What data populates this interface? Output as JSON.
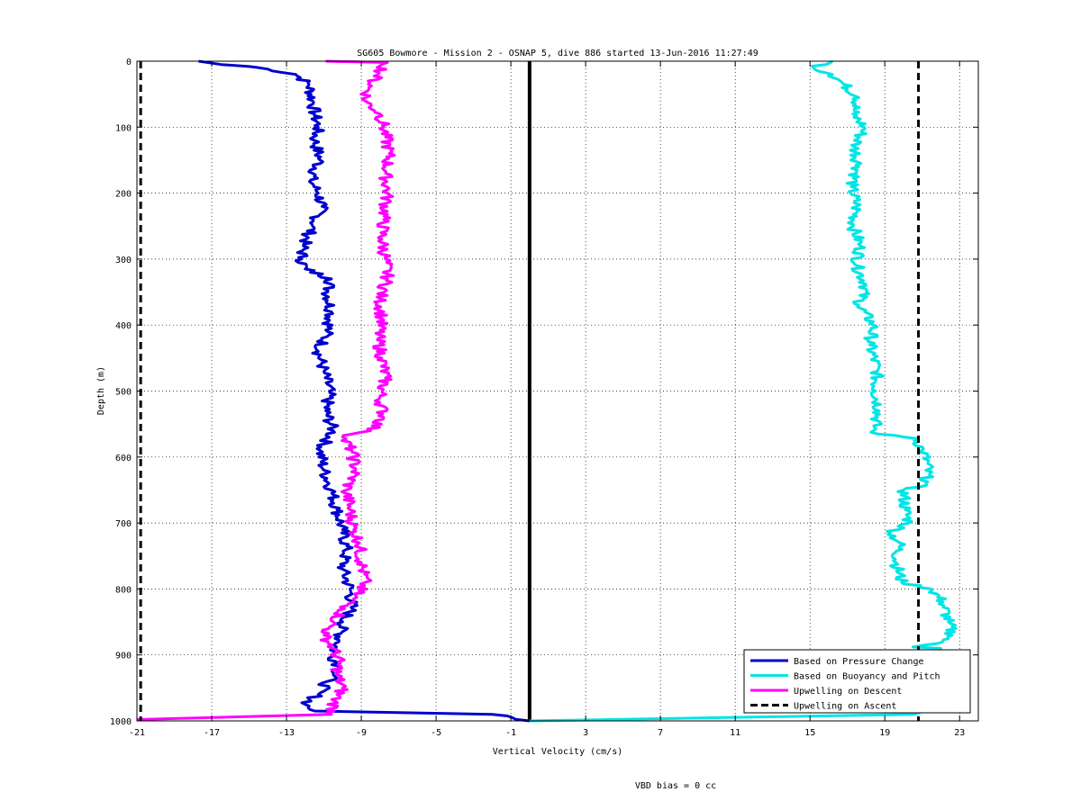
{
  "chart_data": {
    "type": "line",
    "title": "SG605 Bowmore - Mission 2 - OSNAP 5, dive 886 started 13-Jun-2016 11:27:49",
    "xlabel": "Vertical Velocity (cm/s)",
    "ylabel": "Depth (m)",
    "xlim": [
      -21,
      24
    ],
    "ylim": [
      0,
      1000
    ],
    "y_reversed": true,
    "grid": true,
    "legend_position": "bottom-right",
    "x_ticks": [
      -21,
      -17,
      -13,
      -9,
      -5,
      -1,
      3,
      7,
      11,
      15,
      19,
      23
    ],
    "y_ticks": [
      0,
      100,
      200,
      300,
      400,
      500,
      600,
      700,
      800,
      900,
      1000
    ],
    "zero_line_x": 0,
    "series": [
      {
        "name": "Based on Pressure Change",
        "color": "#0000cc",
        "style": "solid",
        "points": [
          [
            -17.7,
            0
          ],
          [
            -16.5,
            5
          ],
          [
            -15,
            8
          ],
          [
            -14,
            12
          ],
          [
            -12.5,
            20
          ],
          [
            -11.8,
            35
          ],
          [
            -11.6,
            60
          ],
          [
            -11.5,
            80
          ],
          [
            -11.3,
            100
          ],
          [
            -11.5,
            120
          ],
          [
            -11.2,
            150
          ],
          [
            -11.7,
            180
          ],
          [
            -11.3,
            200
          ],
          [
            -11.1,
            220
          ],
          [
            -11.6,
            250
          ],
          [
            -12.1,
            280
          ],
          [
            -12.2,
            300
          ],
          [
            -12,
            315
          ],
          [
            -10.6,
            330
          ],
          [
            -10.8,
            350
          ],
          [
            -10.6,
            380
          ],
          [
            -10.8,
            410
          ],
          [
            -11.3,
            440
          ],
          [
            -11.0,
            470
          ],
          [
            -10.7,
            500
          ],
          [
            -10.9,
            530
          ],
          [
            -10.5,
            560
          ],
          [
            -11.2,
            590
          ],
          [
            -11.0,
            620
          ],
          [
            -10.6,
            650
          ],
          [
            -10.3,
            680
          ],
          [
            -10.0,
            710
          ],
          [
            -9.8,
            740
          ],
          [
            -10.0,
            770
          ],
          [
            -9.6,
            800
          ],
          [
            -9.5,
            830
          ],
          [
            -10.0,
            850
          ],
          [
            -10.2,
            880
          ],
          [
            -10.6,
            900
          ],
          [
            -10.1,
            920
          ],
          [
            -10.8,
            940
          ],
          [
            -11.3,
            960
          ],
          [
            -12.0,
            975
          ],
          [
            -11.5,
            985
          ],
          [
            -2.0,
            990
          ],
          [
            0,
            1000
          ]
        ]
      },
      {
        "name": "Based on Buoyancy and Pitch",
        "color": "#00e5e5",
        "style": "solid",
        "points": [
          [
            16.2,
            0
          ],
          [
            15.2,
            10
          ],
          [
            16.2,
            20
          ],
          [
            16.8,
            35
          ],
          [
            17.6,
            55
          ],
          [
            17.3,
            80
          ],
          [
            17.9,
            100
          ],
          [
            17.4,
            130
          ],
          [
            17.6,
            160
          ],
          [
            17.2,
            190
          ],
          [
            17.5,
            220
          ],
          [
            17.3,
            250
          ],
          [
            17.7,
            280
          ],
          [
            17.5,
            310
          ],
          [
            18.0,
            340
          ],
          [
            17.6,
            370
          ],
          [
            18.4,
            400
          ],
          [
            18.2,
            430
          ],
          [
            18.6,
            470
          ],
          [
            18.5,
            500
          ],
          [
            18.7,
            530
          ],
          [
            18.4,
            560
          ],
          [
            18.6,
            565
          ],
          [
            20.7,
            572
          ],
          [
            21.0,
            590
          ],
          [
            21.3,
            610
          ],
          [
            21.2,
            640
          ],
          [
            20.0,
            650
          ],
          [
            20.1,
            680
          ],
          [
            20.3,
            700
          ],
          [
            19.3,
            715
          ],
          [
            19.8,
            730
          ],
          [
            19.6,
            760
          ],
          [
            19.9,
            790
          ],
          [
            21.5,
            800
          ],
          [
            22.1,
            820
          ],
          [
            22.4,
            850
          ],
          [
            22.6,
            870
          ],
          [
            22.1,
            880
          ],
          [
            20.5,
            888
          ],
          [
            22.0,
            890
          ],
          [
            20.5,
            990
          ],
          [
            0,
            1000
          ]
        ]
      },
      {
        "name": "Upwelling on Descent",
        "color": "#ff00ff",
        "style": "solid",
        "points": [
          [
            -10.9,
            0
          ],
          [
            -7.6,
            2
          ],
          [
            -8.1,
            20
          ],
          [
            -8.6,
            40
          ],
          [
            -8.8,
            60
          ],
          [
            -8.0,
            80
          ],
          [
            -7.8,
            100
          ],
          [
            -7.5,
            140
          ],
          [
            -7.7,
            170
          ],
          [
            -7.6,
            200
          ],
          [
            -7.8,
            240
          ],
          [
            -7.9,
            270
          ],
          [
            -7.7,
            300
          ],
          [
            -7.6,
            330
          ],
          [
            -8.0,
            360
          ],
          [
            -7.9,
            390
          ],
          [
            -8.1,
            420
          ],
          [
            -7.9,
            450
          ],
          [
            -7.7,
            480
          ],
          [
            -8.0,
            510
          ],
          [
            -7.8,
            540
          ],
          [
            -8.5,
            560
          ],
          [
            -10.0,
            570
          ],
          [
            -9.5,
            590
          ],
          [
            -9.3,
            620
          ],
          [
            -9.8,
            650
          ],
          [
            -9.6,
            680
          ],
          [
            -9.4,
            710
          ],
          [
            -9.1,
            730
          ],
          [
            -9.0,
            760
          ],
          [
            -8.8,
            790
          ],
          [
            -9.3,
            810
          ],
          [
            -9.9,
            830
          ],
          [
            -10.5,
            850
          ],
          [
            -11.0,
            870
          ],
          [
            -10.5,
            890
          ],
          [
            -10.2,
            910
          ],
          [
            -10.3,
            930
          ],
          [
            -10.0,
            950
          ],
          [
            -10.4,
            970
          ],
          [
            -10.6,
            990
          ],
          [
            -21,
            998
          ]
        ]
      },
      {
        "name": "Upwelling on Ascent",
        "color": "#000000",
        "style": "dashed",
        "vertical_lines_x": [
          -20.8,
          20.8
        ]
      }
    ],
    "annotation": "VBD bias = 0 cc"
  }
}
